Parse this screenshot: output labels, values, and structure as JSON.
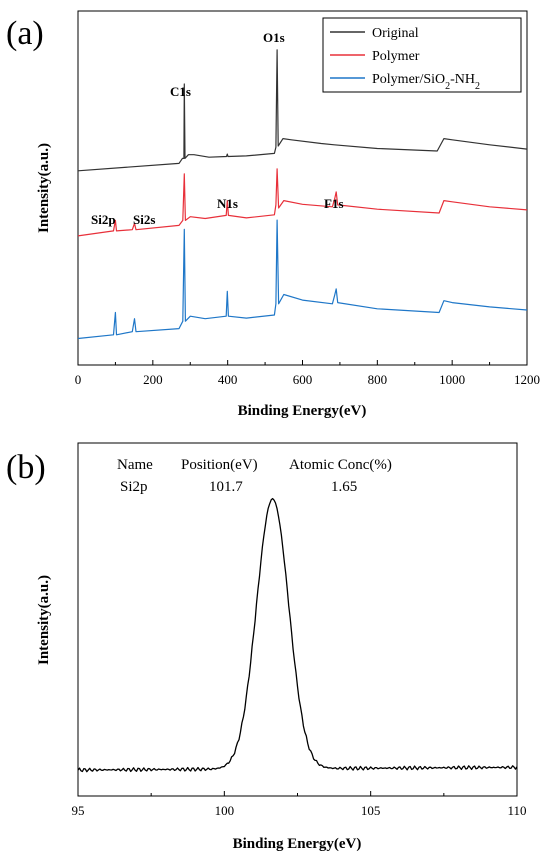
{
  "chart_data": [
    {
      "type": "line",
      "panel_label": "(a)",
      "xlabel": "Binding Energy(eV)",
      "ylabel": "Intensity(a.u.)",
      "xlim": [
        0,
        1200
      ],
      "x_ticks": [
        "0",
        "200",
        "400",
        "600",
        "800",
        "1000",
        "1200"
      ],
      "y_ticks": false,
      "grid": false,
      "legend_position": "top-right",
      "series": [
        {
          "name": "Original",
          "color": "#333333",
          "offset": 2,
          "points": [
            [
              0,
              0.1
            ],
            [
              270,
              0.22
            ],
            [
              279,
              0.3
            ],
            [
              283,
              0.3
            ],
            [
              284,
              1.5
            ],
            [
              286,
              0.3
            ],
            [
              295,
              0.36
            ],
            [
              310,
              0.36
            ],
            [
              350,
              0.32
            ],
            [
              397,
              0.33
            ],
            [
              399,
              0.37
            ],
            [
              401,
              0.33
            ],
            [
              450,
              0.34
            ],
            [
              525,
              0.38
            ],
            [
              529,
              0.48
            ],
            [
              532,
              2.05
            ],
            [
              535,
              0.5
            ],
            [
              548,
              0.62
            ],
            [
              570,
              0.6
            ],
            [
              650,
              0.54
            ],
            [
              685,
              0.52
            ],
            [
              800,
              0.46
            ],
            [
              960,
              0.42
            ],
            [
              978,
              0.62
            ],
            [
              1000,
              0.6
            ],
            [
              1100,
              0.52
            ],
            [
              1200,
              0.45
            ]
          ]
        },
        {
          "name": "Polymer",
          "color": "#e8303a",
          "offset": 1,
          "points": [
            [
              0,
              0.05
            ],
            [
              95,
              0.13
            ],
            [
              100,
              0.3
            ],
            [
              103,
              0.13
            ],
            [
              145,
              0.15
            ],
            [
              151,
              0.25
            ],
            [
              155,
              0.15
            ],
            [
              270,
              0.22
            ],
            [
              280,
              0.3
            ],
            [
              284,
              1.05
            ],
            [
              287,
              0.3
            ],
            [
              300,
              0.36
            ],
            [
              340,
              0.33
            ],
            [
              396,
              0.38
            ],
            [
              399,
              0.62
            ],
            [
              402,
              0.38
            ],
            [
              450,
              0.34
            ],
            [
              525,
              0.39
            ],
            [
              529,
              0.55
            ],
            [
              532,
              1.13
            ],
            [
              536,
              0.5
            ],
            [
              550,
              0.62
            ],
            [
              600,
              0.56
            ],
            [
              680,
              0.52
            ],
            [
              686,
              0.65
            ],
            [
              690,
              0.76
            ],
            [
              694,
              0.55
            ],
            [
              800,
              0.48
            ],
            [
              965,
              0.42
            ],
            [
              978,
              0.62
            ],
            [
              1000,
              0.6
            ],
            [
              1100,
              0.52
            ],
            [
              1200,
              0.47
            ]
          ]
        },
        {
          "name": "Polymer/SiO2-NH2",
          "color": "#1f77c8",
          "offset": 0,
          "points": [
            [
              0,
              0.04
            ],
            [
              95,
              0.1
            ],
            [
              100,
              0.46
            ],
            [
              103,
              0.1
            ],
            [
              145,
              0.15
            ],
            [
              151,
              0.36
            ],
            [
              155,
              0.15
            ],
            [
              270,
              0.2
            ],
            [
              280,
              0.32
            ],
            [
              284,
              1.8
            ],
            [
              287,
              0.32
            ],
            [
              300,
              0.4
            ],
            [
              340,
              0.36
            ],
            [
              396,
              0.4
            ],
            [
              399,
              0.8
            ],
            [
              402,
              0.4
            ],
            [
              450,
              0.37
            ],
            [
              525,
              0.42
            ],
            [
              529,
              0.6
            ],
            [
              532,
              1.95
            ],
            [
              536,
              0.6
            ],
            [
              550,
              0.75
            ],
            [
              600,
              0.66
            ],
            [
              680,
              0.6
            ],
            [
              686,
              0.74
            ],
            [
              690,
              0.84
            ],
            [
              694,
              0.62
            ],
            [
              800,
              0.52
            ],
            [
              965,
              0.46
            ],
            [
              978,
              0.65
            ],
            [
              1000,
              0.62
            ],
            [
              1100,
              0.55
            ],
            [
              1200,
              0.5
            ]
          ]
        }
      ],
      "annotations": [
        "C1s",
        "O1s",
        "Si2p",
        "Si2s",
        "N1s",
        "F1s"
      ]
    },
    {
      "type": "line",
      "panel_label": "(b)",
      "xlabel": "Binding Energy(eV)",
      "ylabel": "Intensity(a.u.)",
      "xlim": [
        95,
        110
      ],
      "x_ticks": [
        "95",
        "100",
        "105",
        "110"
      ],
      "y_ticks": false,
      "grid": false,
      "peak_position": 101.65,
      "peak_fwhm": 1.3,
      "baseline_left": 0.02,
      "baseline_right": 0.03,
      "peak_height": 1.0,
      "table": {
        "headers": [
          "Name",
          "Position(eV)",
          "Atomic Conc(%)"
        ],
        "row": [
          "Si2p",
          "101.7",
          "1.65"
        ]
      }
    }
  ]
}
